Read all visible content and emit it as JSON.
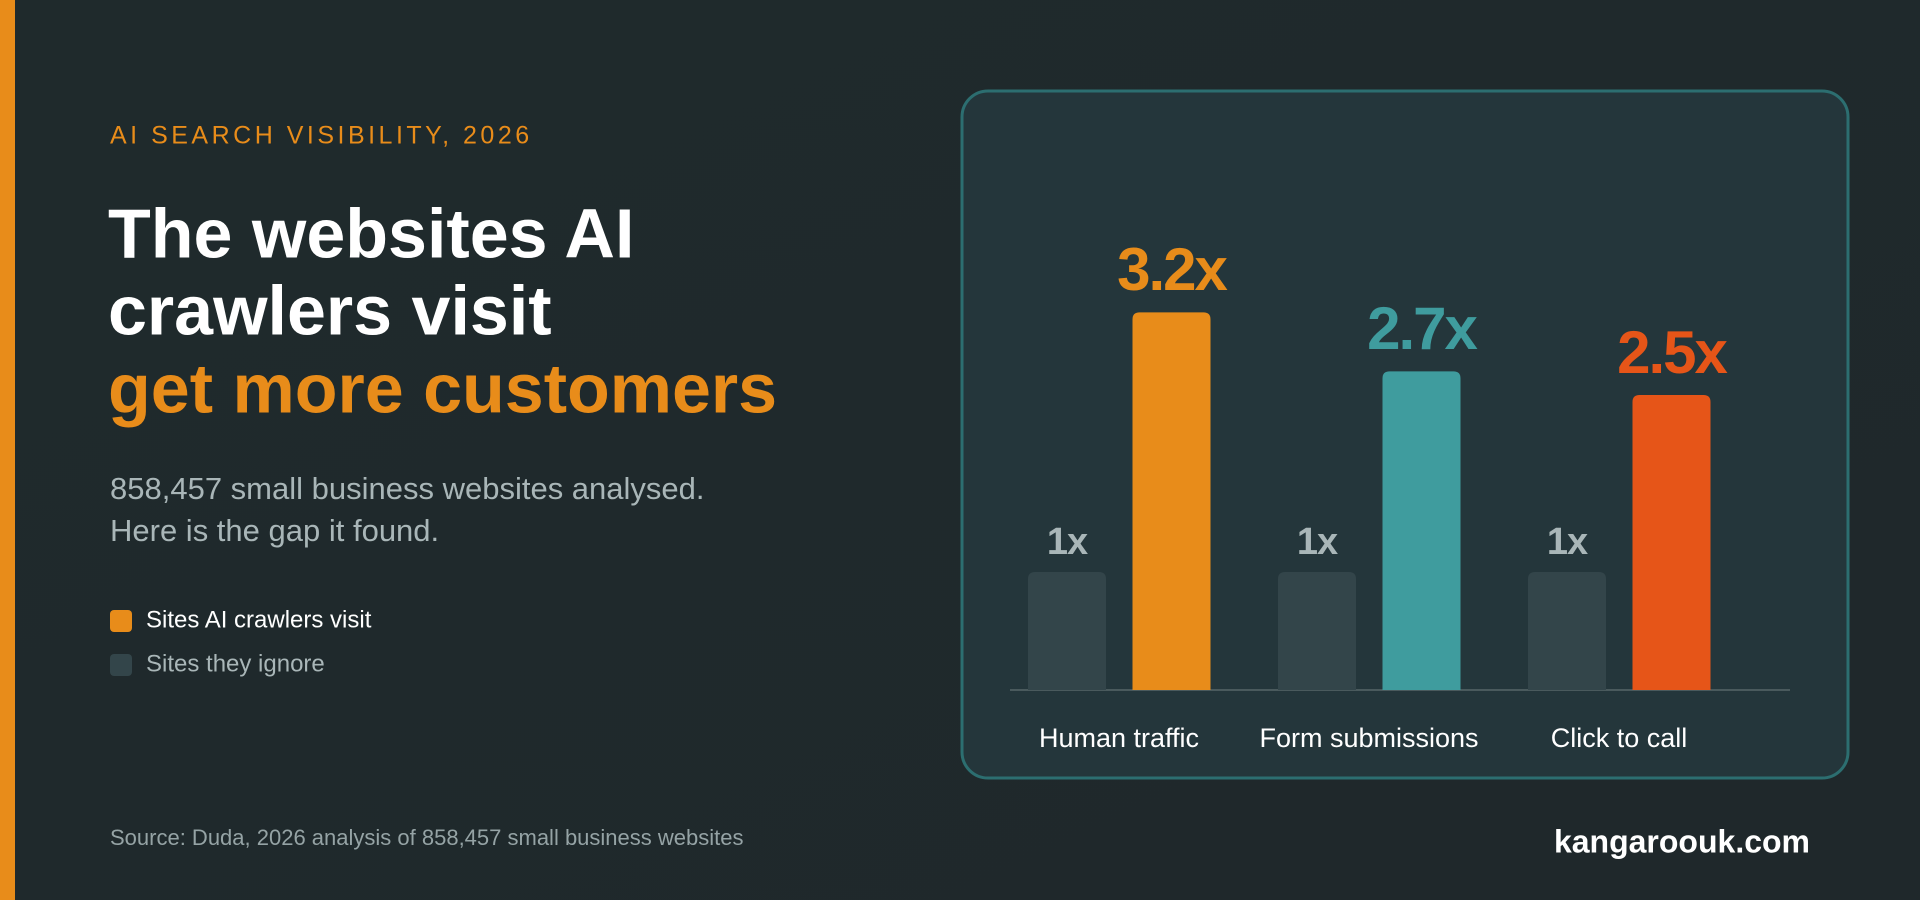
{
  "kicker": "AI SEARCH VISIBILITY, 2026",
  "headline": [
    "The websites AI",
    "crawlers visit"
  ],
  "headline_highlight": "get more customers",
  "subtitle": [
    "858,457 small business websites analysed.",
    "Here is the gap it found."
  ],
  "source": "Source: Duda, 2026 analysis of 858,457 small business websites",
  "brand": "kangaroouk.com",
  "chart_data": {
    "type": "bar",
    "categories": [
      "Human traffic",
      "Form submissions",
      "Click to call"
    ],
    "series": [
      {
        "name": "Sites they ignore",
        "color": "#33454a",
        "values": [
          1,
          1,
          1
        ],
        "value_labels": [
          "1x",
          "1x",
          "1x"
        ],
        "label_color": "#a9b6b8"
      },
      {
        "name": "Sites AI crawlers visit",
        "color": "#e88c1a",
        "colors": [
          "#e88c1a",
          "#3f9c9e",
          "#e65518"
        ],
        "values": [
          3.2,
          2.7,
          2.5
        ],
        "value_labels": [
          "3.2x",
          "2.7x",
          "2.5x"
        ]
      }
    ],
    "ylim": [
      0,
      4
    ]
  }
}
